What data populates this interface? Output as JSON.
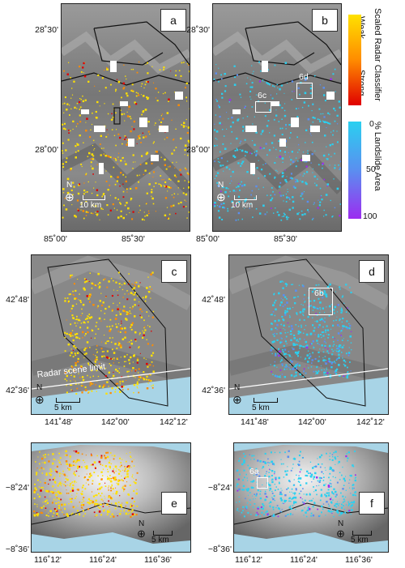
{
  "panels": {
    "a": {
      "letter": "a",
      "scale": "10 km",
      "north": "N",
      "lat_ticks": [
        "28˚30'",
        "28˚00'"
      ],
      "lon_ticks": [
        "85˚00'",
        "85˚30'"
      ]
    },
    "b": {
      "letter": "b",
      "scale": "10 km",
      "north": "N",
      "lat_ticks": [
        "28˚30'",
        "28˚00'"
      ],
      "lon_ticks": [
        "85˚00'",
        "85˚30'"
      ],
      "insets": [
        "6d",
        "6c"
      ]
    },
    "c": {
      "letter": "c",
      "scale": "5 km",
      "north": "N",
      "lat_ticks": [
        "42˚48'",
        "42˚36'"
      ],
      "lon_ticks": [
        "141˚48'",
        "142˚00'",
        "142˚12'"
      ],
      "annotation": "Radar scene limit"
    },
    "d": {
      "letter": "d",
      "scale": "5 km",
      "north": "N",
      "lat_ticks": [
        "42˚48'",
        "42˚36'"
      ],
      "lon_ticks": [
        "141˚48'",
        "142˚00'",
        "142˚12'"
      ],
      "insets": [
        "6b"
      ]
    },
    "e": {
      "letter": "e",
      "scale": "5 km",
      "north": "N",
      "lat_ticks": [
        "−8˚24'",
        "−8˚36'"
      ],
      "lon_ticks": [
        "116˚12'",
        "116˚24'",
        "116˚36'"
      ]
    },
    "f": {
      "letter": "f",
      "scale": "5 km",
      "north": "N",
      "lat_ticks": [
        "−8˚24'",
        "−8˚36'"
      ],
      "lon_ticks": [
        "116˚12'",
        "116˚24'",
        "116˚36'"
      ],
      "insets": [
        "6a"
      ]
    }
  },
  "legend_radar": {
    "title": "Scaled Radar Classifier",
    "weak": "Weak",
    "strong": "Strong",
    "colors": [
      "#ffe100",
      "#ff8c00",
      "#e00000"
    ]
  },
  "legend_landslide": {
    "title": "% Landslide Area",
    "ticks": [
      "0",
      "50",
      "100"
    ],
    "colors": [
      "#2ad0f0",
      "#5a8ff0",
      "#9c2cf0"
    ]
  },
  "colors": {
    "water": "#a8d4e6",
    "radar_point": "#f5c400",
    "landslide_point": "#2ac8ee"
  }
}
